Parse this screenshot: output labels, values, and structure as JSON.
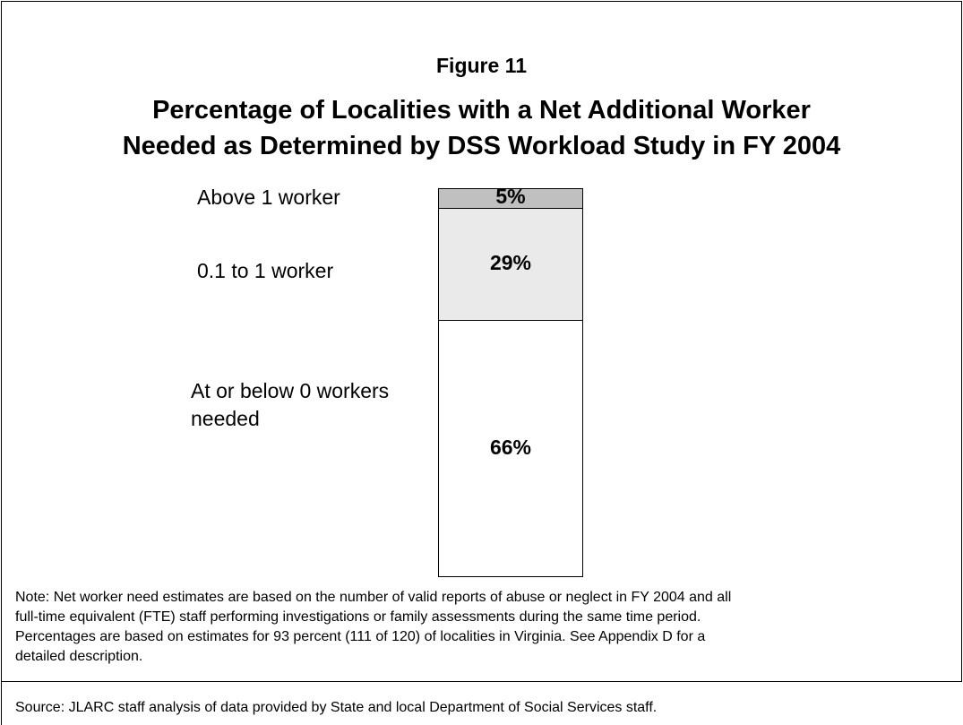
{
  "chart_data": {
    "type": "stacked-bar",
    "label": "Figure 11",
    "title_lines": [
      "Percentage of Localities with a Net Additional Worker",
      "Needed as Determined by DSS Workload Study in FY 2004"
    ],
    "series": [
      {
        "name": "At or below 0 workers needed",
        "color": "#ffffff",
        "values": [
          66
        ],
        "value_labels": [
          "66%"
        ]
      },
      {
        "name": "0.1 to 1 worker",
        "color": "#eaeaea",
        "values": [
          29
        ],
        "value_labels": [
          "29%"
        ]
      },
      {
        "name": "Above 1 worker",
        "color": "#c0c0c0",
        "values": [
          5
        ],
        "value_labels": [
          "5%"
        ]
      }
    ],
    "note_lines": [
      "Note:  Net worker need estimates are based on the number of valid reports of abuse or neglect in FY 2004 and all",
      "full-time equivalent (FTE) staff performing investigations or family assessments during the same time period.",
      "Percentages are based on estimates for 93 percent (111 of 120) of localities in Virginia.  See Appendix D for a",
      "detailed description."
    ],
    "source": "Source:  JLARC staff analysis of data provided by State and local Department of Social Services staff."
  }
}
